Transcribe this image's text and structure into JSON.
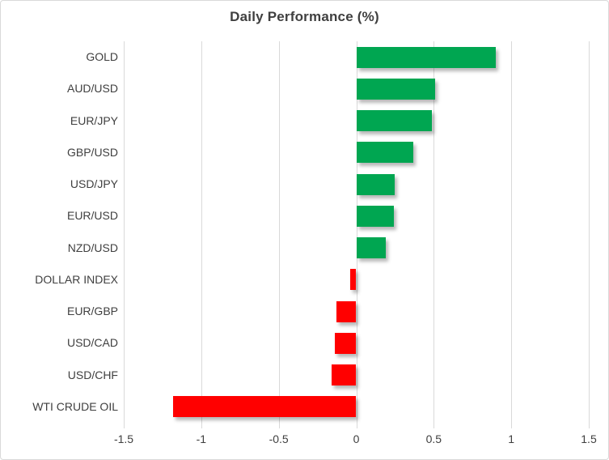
{
  "chart_data": {
    "type": "bar",
    "orientation": "horizontal",
    "title": "Daily Performance (%)",
    "categories": [
      "GOLD",
      "AUD/USD",
      "EUR/JPY",
      "GBP/USD",
      "USD/JPY",
      "EUR/USD",
      "NZD/USD",
      "DOLLAR INDEX",
      "EUR/GBP",
      "USD/CAD",
      "USD/CHF",
      "WTI CRUDE OIL"
    ],
    "values": [
      0.9,
      0.51,
      0.49,
      0.37,
      0.25,
      0.24,
      0.19,
      -0.04,
      -0.13,
      -0.14,
      -0.16,
      -1.18
    ],
    "xlim": [
      -1.5,
      1.5
    ],
    "xticks": [
      -1.5,
      -1,
      -0.5,
      0,
      0.5,
      1,
      1.5
    ],
    "xtick_labels": [
      "-1.5",
      "-1",
      "-0.5",
      "0",
      "0.5",
      "1",
      "1.5"
    ],
    "grid": true,
    "legend": "none",
    "positive_color": "#00A651",
    "negative_color": "#FF0000",
    "gridline_color": "#d9d9d9",
    "text_color": "#3f3f3f",
    "bar_shadow": true
  }
}
